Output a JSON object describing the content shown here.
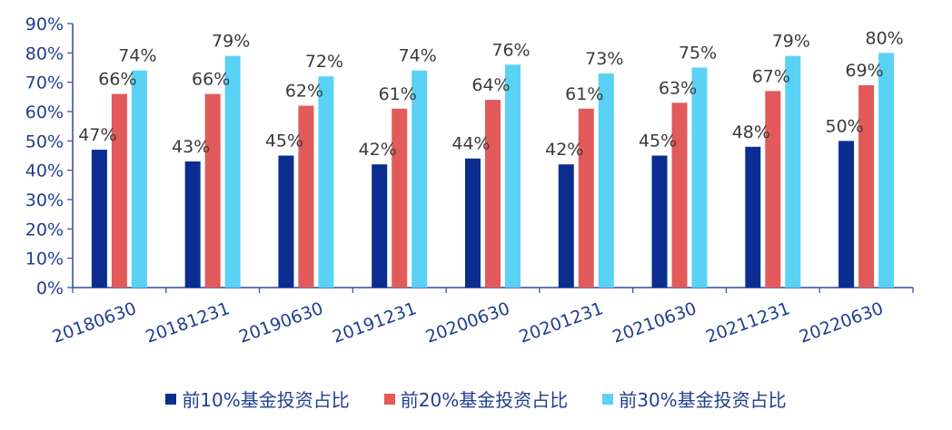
{
  "chart_data": {
    "type": "bar",
    "categories": [
      "20180630",
      "20181231",
      "20190630",
      "20191231",
      "20200630",
      "20201231",
      "20210630",
      "20211231",
      "20220630"
    ],
    "series": [
      {
        "name": "前10%基金投资占比",
        "color": "#0a2d8f",
        "values": [
          47,
          43,
          45,
          42,
          44,
          42,
          45,
          48,
          50
        ]
      },
      {
        "name": "前20%基金投资占比",
        "color": "#e35a5a",
        "values": [
          66,
          66,
          62,
          61,
          64,
          61,
          63,
          67,
          69
        ]
      },
      {
        "name": "前30%基金投资占比",
        "color": "#5ad2f5",
        "values": [
          74,
          79,
          72,
          74,
          76,
          73,
          75,
          79,
          80
        ]
      }
    ],
    "yticks": [
      "0%",
      "10%",
      "20%",
      "30%",
      "40%",
      "50%",
      "60%",
      "70%",
      "80%",
      "90%"
    ],
    "ylim": [
      0,
      90
    ],
    "grid": false,
    "legend_position": "bottom"
  }
}
